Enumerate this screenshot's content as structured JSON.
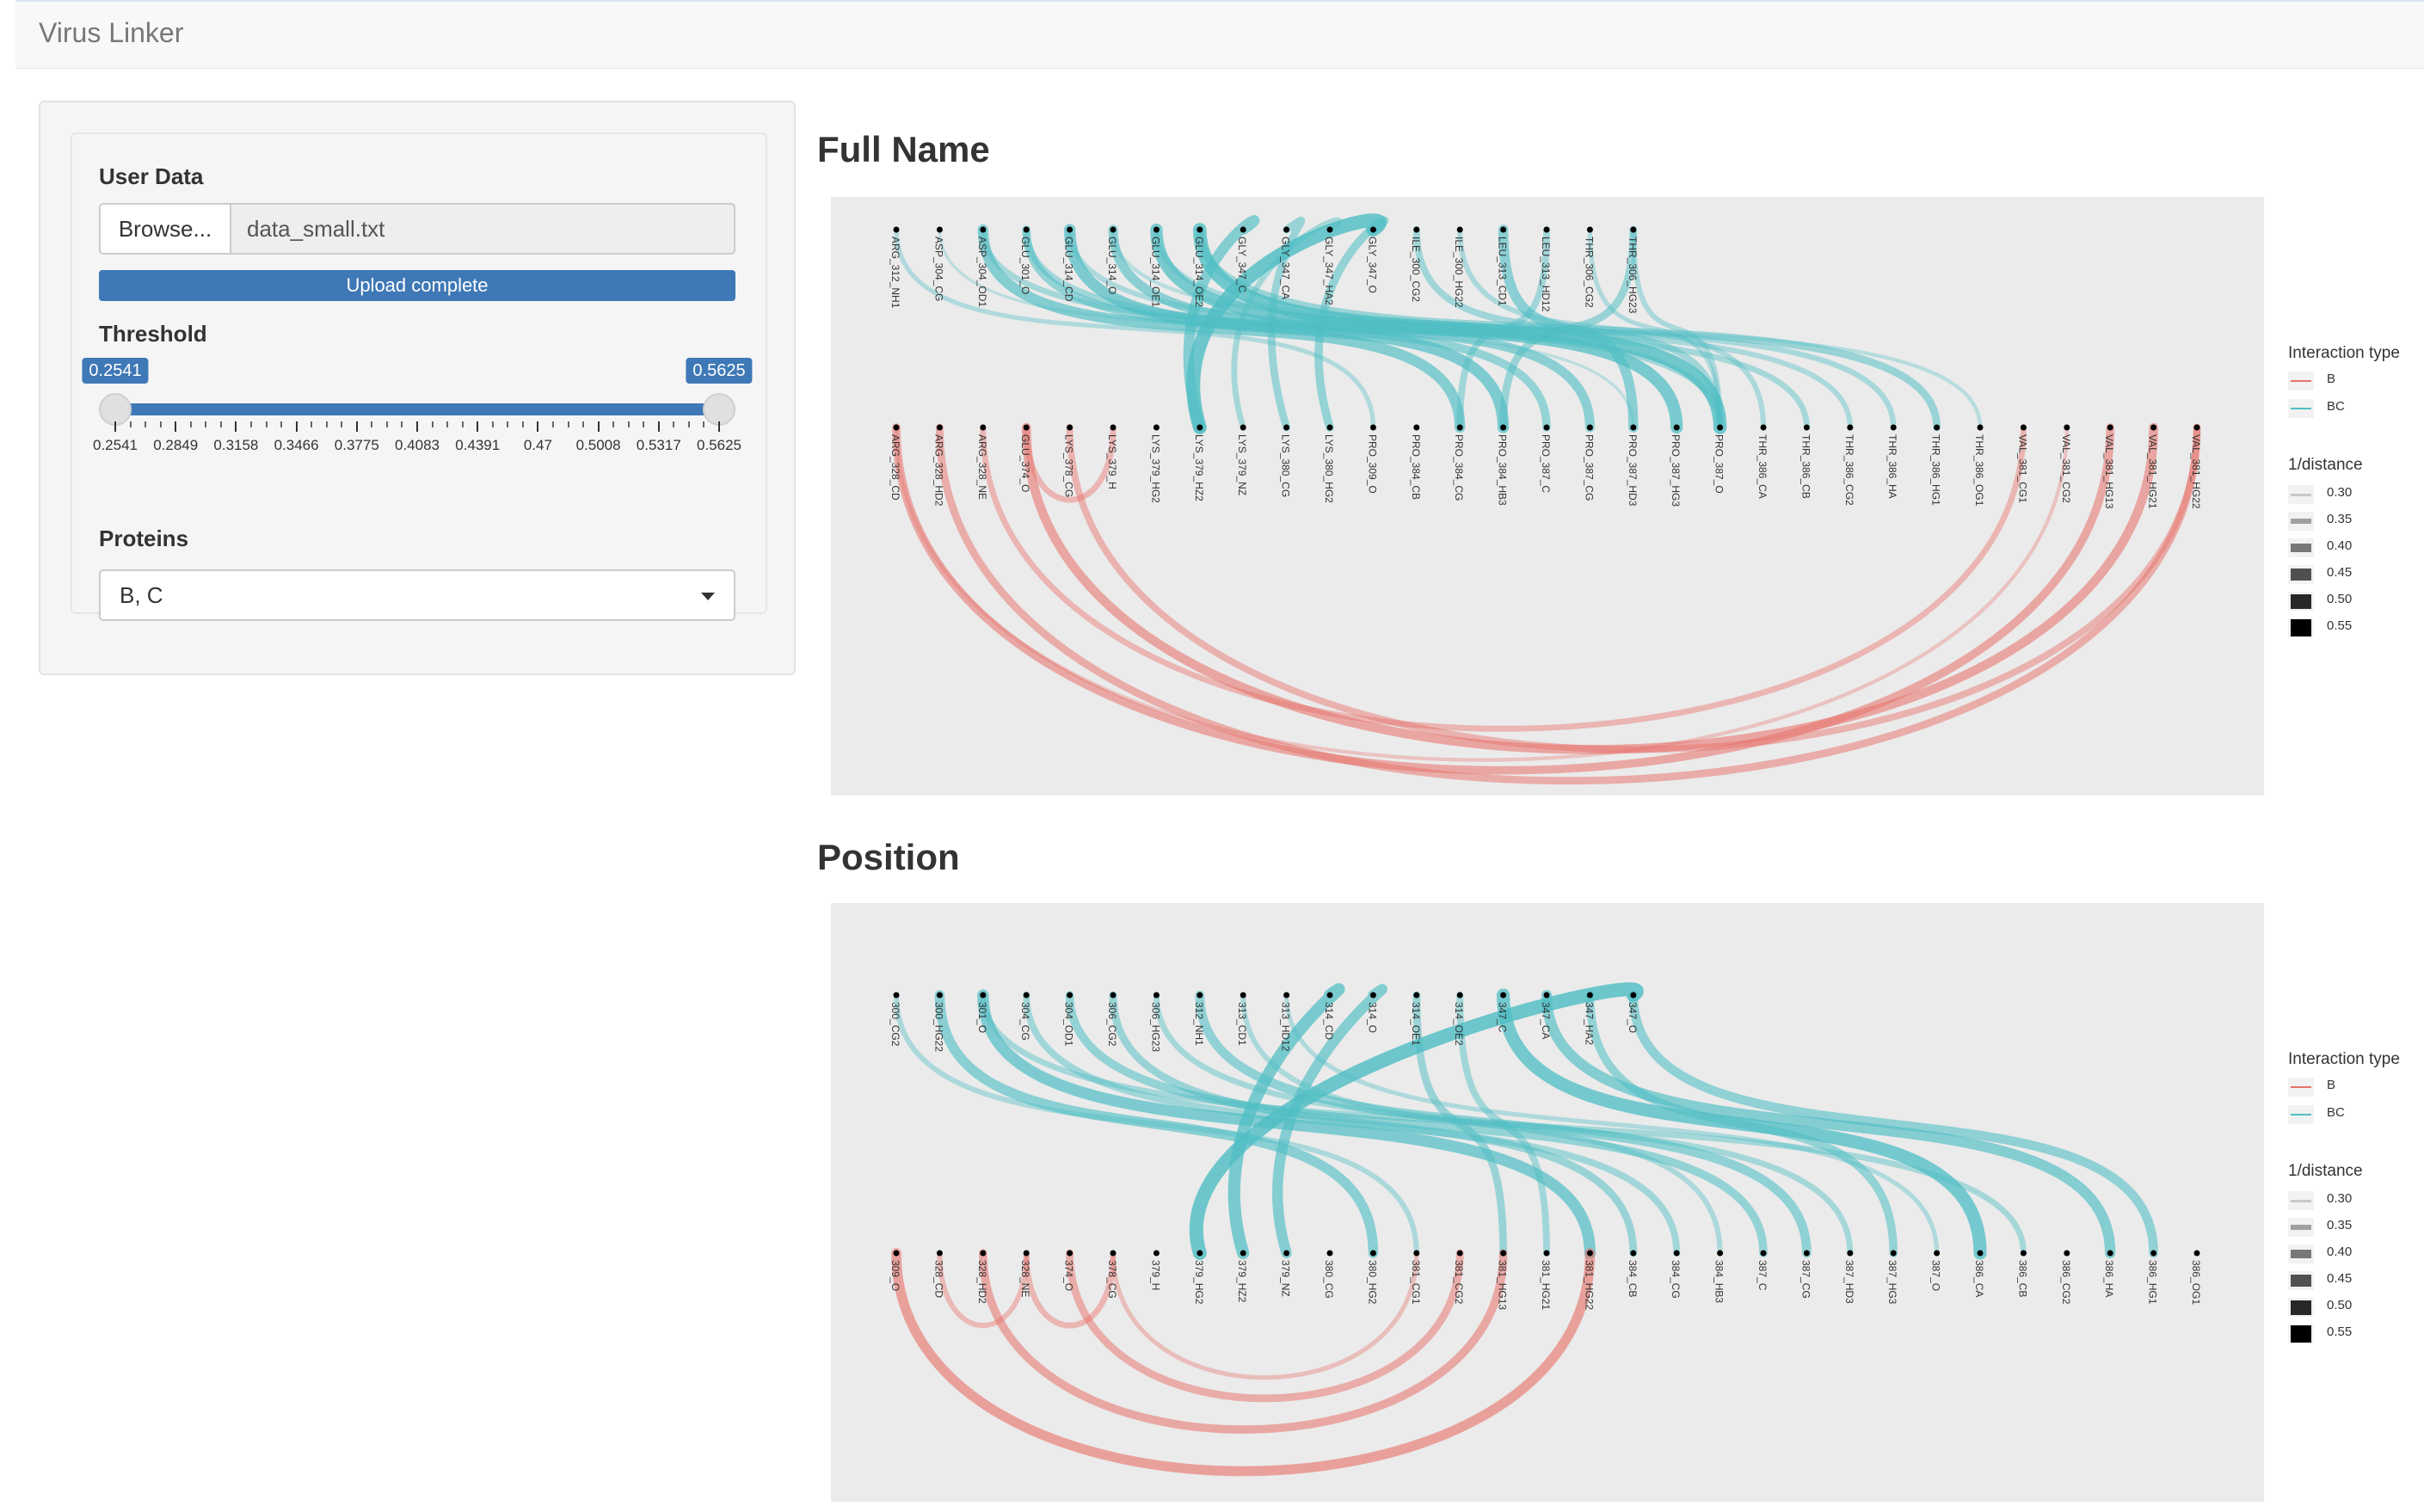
{
  "app": {
    "title": "Virus Linker"
  },
  "sidebar": {
    "user_data": {
      "label": "User Data",
      "browse_label": "Browse...",
      "file_name": "data_small.txt",
      "progress_text": "Upload complete",
      "progress_percent": 100
    },
    "threshold": {
      "label": "Threshold",
      "min": 0.2541,
      "max": 0.5625,
      "value_low": 0.2541,
      "value_high": 0.5625,
      "low_label": "0.2541",
      "high_label": "0.5625",
      "ticks": [
        "0.2541",
        "0.2849",
        "0.3158",
        "0.3466",
        "0.3775",
        "0.4083",
        "0.4391",
        "0.47",
        "0.5008",
        "0.5317",
        "0.5625"
      ]
    },
    "proteins": {
      "label": "Proteins",
      "selected": "B, C"
    }
  },
  "colors": {
    "accent": "#3f78b6",
    "B": "#e8736c",
    "BC": "#4fbec4",
    "panel_bg": "#ebebeb"
  },
  "sections": [
    {
      "title": "Full Name",
      "legend": {
        "type_title": "Interaction type",
        "types": [
          "B",
          "BC"
        ],
        "dist_title": "1/distance",
        "dist_values": [
          "0.30",
          "0.35",
          "0.40",
          "0.45",
          "0.50",
          "0.55"
        ]
      },
      "top_nodes": [
        "ARG_312_NH1",
        "ASP_304_CG",
        "ASP_304_OD1",
        "GLU_301_O",
        "GLU_314_CD",
        "GLU_314_O",
        "GLU_314_OE1",
        "GLU_314_OE2",
        "GLY_347_C",
        "GLY_347_CA",
        "GLY_347_HA2",
        "GLY_347_O",
        "ILE_300_CG2",
        "ILE_300_HG22",
        "LEU_313_CD1",
        "LEU_313_HD12",
        "THR_306_CG2",
        "THR_306_HG23"
      ],
      "bottom_nodes": [
        "ARG_328_CD",
        "ARG_328_HD2",
        "ARG_328_NE",
        "GLU_374_O",
        "LYS_378_CG",
        "LYS_379_H",
        "LYS_379_HG2",
        "LYS_379_HZ2",
        "LYS_379_NZ",
        "LYS_380_CG",
        "LYS_380_HG2",
        "PRO_309_O",
        "PRO_384_CB",
        "PRO_384_CG",
        "PRO_384_HB3",
        "PRO_387_C",
        "PRO_387_CG",
        "PRO_387_HD3",
        "PRO_387_HG3",
        "PRO_387_O",
        "THR_386_CA",
        "THR_386_CB",
        "THR_386_CG2",
        "THR_386_HA",
        "THR_386_HG1",
        "THR_386_OG1",
        "VAL_381_CG1",
        "VAL_381_CG2",
        "VAL_381_HG13",
        "VAL_381_HG21",
        "VAL_381_HG22"
      ],
      "links": [
        {
          "from": 0,
          "to": 11,
          "type": "BC",
          "w": 0.32
        },
        {
          "from": 1,
          "to": 17,
          "type": "BC",
          "w": 0.28
        },
        {
          "from": 2,
          "to": 13,
          "type": "BC",
          "w": 0.48
        },
        {
          "from": 2,
          "to": 21,
          "type": "BC",
          "w": 0.36
        },
        {
          "from": 3,
          "to": 15,
          "type": "BC",
          "w": 0.42
        },
        {
          "from": 3,
          "to": 19,
          "type": "BC",
          "w": 0.38
        },
        {
          "from": 4,
          "to": 14,
          "type": "BC",
          "w": 0.5
        },
        {
          "from": 4,
          "to": 22,
          "type": "BC",
          "w": 0.34
        },
        {
          "from": 5,
          "to": 16,
          "type": "BC",
          "w": 0.45
        },
        {
          "from": 5,
          "to": 25,
          "type": "BC",
          "w": 0.3
        },
        {
          "from": 6,
          "to": 18,
          "type": "BC",
          "w": 0.52
        },
        {
          "from": 6,
          "to": 23,
          "type": "BC",
          "w": 0.35
        },
        {
          "from": 7,
          "to": 19,
          "type": "BC",
          "w": 0.55
        },
        {
          "from": 7,
          "to": 24,
          "type": "BC",
          "w": 0.4
        },
        {
          "from": 8,
          "to": 7,
          "type": "BC",
          "w": 0.48
        },
        {
          "from": 9,
          "to": 9,
          "type": "BC",
          "w": 0.4
        },
        {
          "from": 10,
          "to": 8,
          "type": "BC",
          "w": 0.36
        },
        {
          "from": 11,
          "to": 7,
          "type": "BC",
          "w": 0.56
        },
        {
          "from": 11,
          "to": 10,
          "type": "BC",
          "w": 0.42
        },
        {
          "from": 12,
          "to": 19,
          "type": "BC",
          "w": 0.38
        },
        {
          "from": 13,
          "to": 20,
          "type": "BC",
          "w": 0.34
        },
        {
          "from": 14,
          "to": 17,
          "type": "BC",
          "w": 0.46
        },
        {
          "from": 15,
          "to": 13,
          "type": "BC",
          "w": 0.38
        },
        {
          "from": 16,
          "to": 19,
          "type": "BC",
          "w": 0.32
        },
        {
          "from": 17,
          "to": 14,
          "type": "BC",
          "w": 0.4
        },
        {
          "from": 17,
          "to": 19,
          "type": "BC",
          "w": 0.34
        },
        {
          "from": 0,
          "to": 28,
          "type": "B",
          "w": 0.42
        },
        {
          "from": 1,
          "to": 30,
          "type": "B",
          "w": 0.4
        },
        {
          "from": 2,
          "to": 26,
          "type": "B",
          "w": 0.36
        },
        {
          "from": 3,
          "to": 29,
          "type": "B",
          "w": 0.44
        },
        {
          "from": 3,
          "to": 5,
          "type": "B",
          "w": 0.36
        },
        {
          "from": 0,
          "to": 27,
          "type": "B",
          "w": 0.3
        },
        {
          "from": 4,
          "to": 30,
          "type": "B",
          "w": 0.38
        }
      ]
    },
    {
      "title": "Position",
      "legend": {
        "type_title": "Interaction type",
        "types": [
          "B",
          "BC"
        ],
        "dist_title": "1/distance",
        "dist_values": [
          "0.30",
          "0.35",
          "0.40",
          "0.45",
          "0.50",
          "0.55"
        ]
      },
      "top_nodes": [
        "300_CG2",
        "300_HG22",
        "301_O",
        "304_CG",
        "304_OD1",
        "306_CG2",
        "306_HG23",
        "312_NH1",
        "313_CD1",
        "313_HD12",
        "314_CD",
        "314_O",
        "314_OE1",
        "314_OE2",
        "347_C",
        "347_CA",
        "347_HA2",
        "347_O"
      ],
      "bottom_nodes": [
        "309_O",
        "328_CD",
        "328_HD2",
        "328_NE",
        "374_O",
        "378_CG",
        "379_H",
        "379_HG2",
        "379_HZ2",
        "379_NZ",
        "380_CG",
        "380_HG2",
        "381_CG1",
        "381_CG2",
        "381_HG13",
        "381_HG21",
        "381_HG22",
        "384_CB",
        "384_CG",
        "384_HB3",
        "387_C",
        "387_CG",
        "387_HD3",
        "387_HG3",
        "387_O",
        "386_CA",
        "386_CB",
        "386_CG2",
        "386_HA",
        "386_HG1",
        "386_OG1"
      ],
      "links": [
        {
          "from": 0,
          "to": 12,
          "type": "BC",
          "w": 0.34
        },
        {
          "from": 1,
          "to": 11,
          "type": "BC",
          "w": 0.46
        },
        {
          "from": 2,
          "to": 16,
          "type": "BC",
          "w": 0.5
        },
        {
          "from": 3,
          "to": 18,
          "type": "BC",
          "w": 0.38
        },
        {
          "from": 4,
          "to": 20,
          "type": "BC",
          "w": 0.42
        },
        {
          "from": 5,
          "to": 17,
          "type": "BC",
          "w": 0.4
        },
        {
          "from": 6,
          "to": 22,
          "type": "BC",
          "w": 0.36
        },
        {
          "from": 7,
          "to": 21,
          "type": "BC",
          "w": 0.44
        },
        {
          "from": 8,
          "to": 19,
          "type": "BC",
          "w": 0.34
        },
        {
          "from": 9,
          "to": 24,
          "type": "BC",
          "w": 0.32
        },
        {
          "from": 10,
          "to": 8,
          "type": "BC",
          "w": 0.52
        },
        {
          "from": 11,
          "to": 9,
          "type": "BC",
          "w": 0.48
        },
        {
          "from": 12,
          "to": 14,
          "type": "BC",
          "w": 0.4
        },
        {
          "from": 13,
          "to": 15,
          "type": "BC",
          "w": 0.38
        },
        {
          "from": 14,
          "to": 25,
          "type": "BC",
          "w": 0.54
        },
        {
          "from": 15,
          "to": 28,
          "type": "BC",
          "w": 0.48
        },
        {
          "from": 16,
          "to": 23,
          "type": "BC",
          "w": 0.42
        },
        {
          "from": 17,
          "to": 7,
          "type": "BC",
          "w": 0.56
        },
        {
          "from": 17,
          "to": 29,
          "type": "BC",
          "w": 0.44
        },
        {
          "from": 2,
          "to": 26,
          "type": "BC",
          "w": 0.36
        },
        {
          "from": 1,
          "to": 3,
          "type": "B",
          "w": 0.34
        },
        {
          "from": 2,
          "to": 14,
          "type": "B",
          "w": 0.42
        },
        {
          "from": 3,
          "to": 5,
          "type": "B",
          "w": 0.36
        },
        {
          "from": 4,
          "to": 13,
          "type": "B",
          "w": 0.4
        },
        {
          "from": 0,
          "to": 16,
          "type": "B",
          "w": 0.46
        },
        {
          "from": 5,
          "to": 12,
          "type": "B",
          "w": 0.32
        }
      ]
    }
  ]
}
